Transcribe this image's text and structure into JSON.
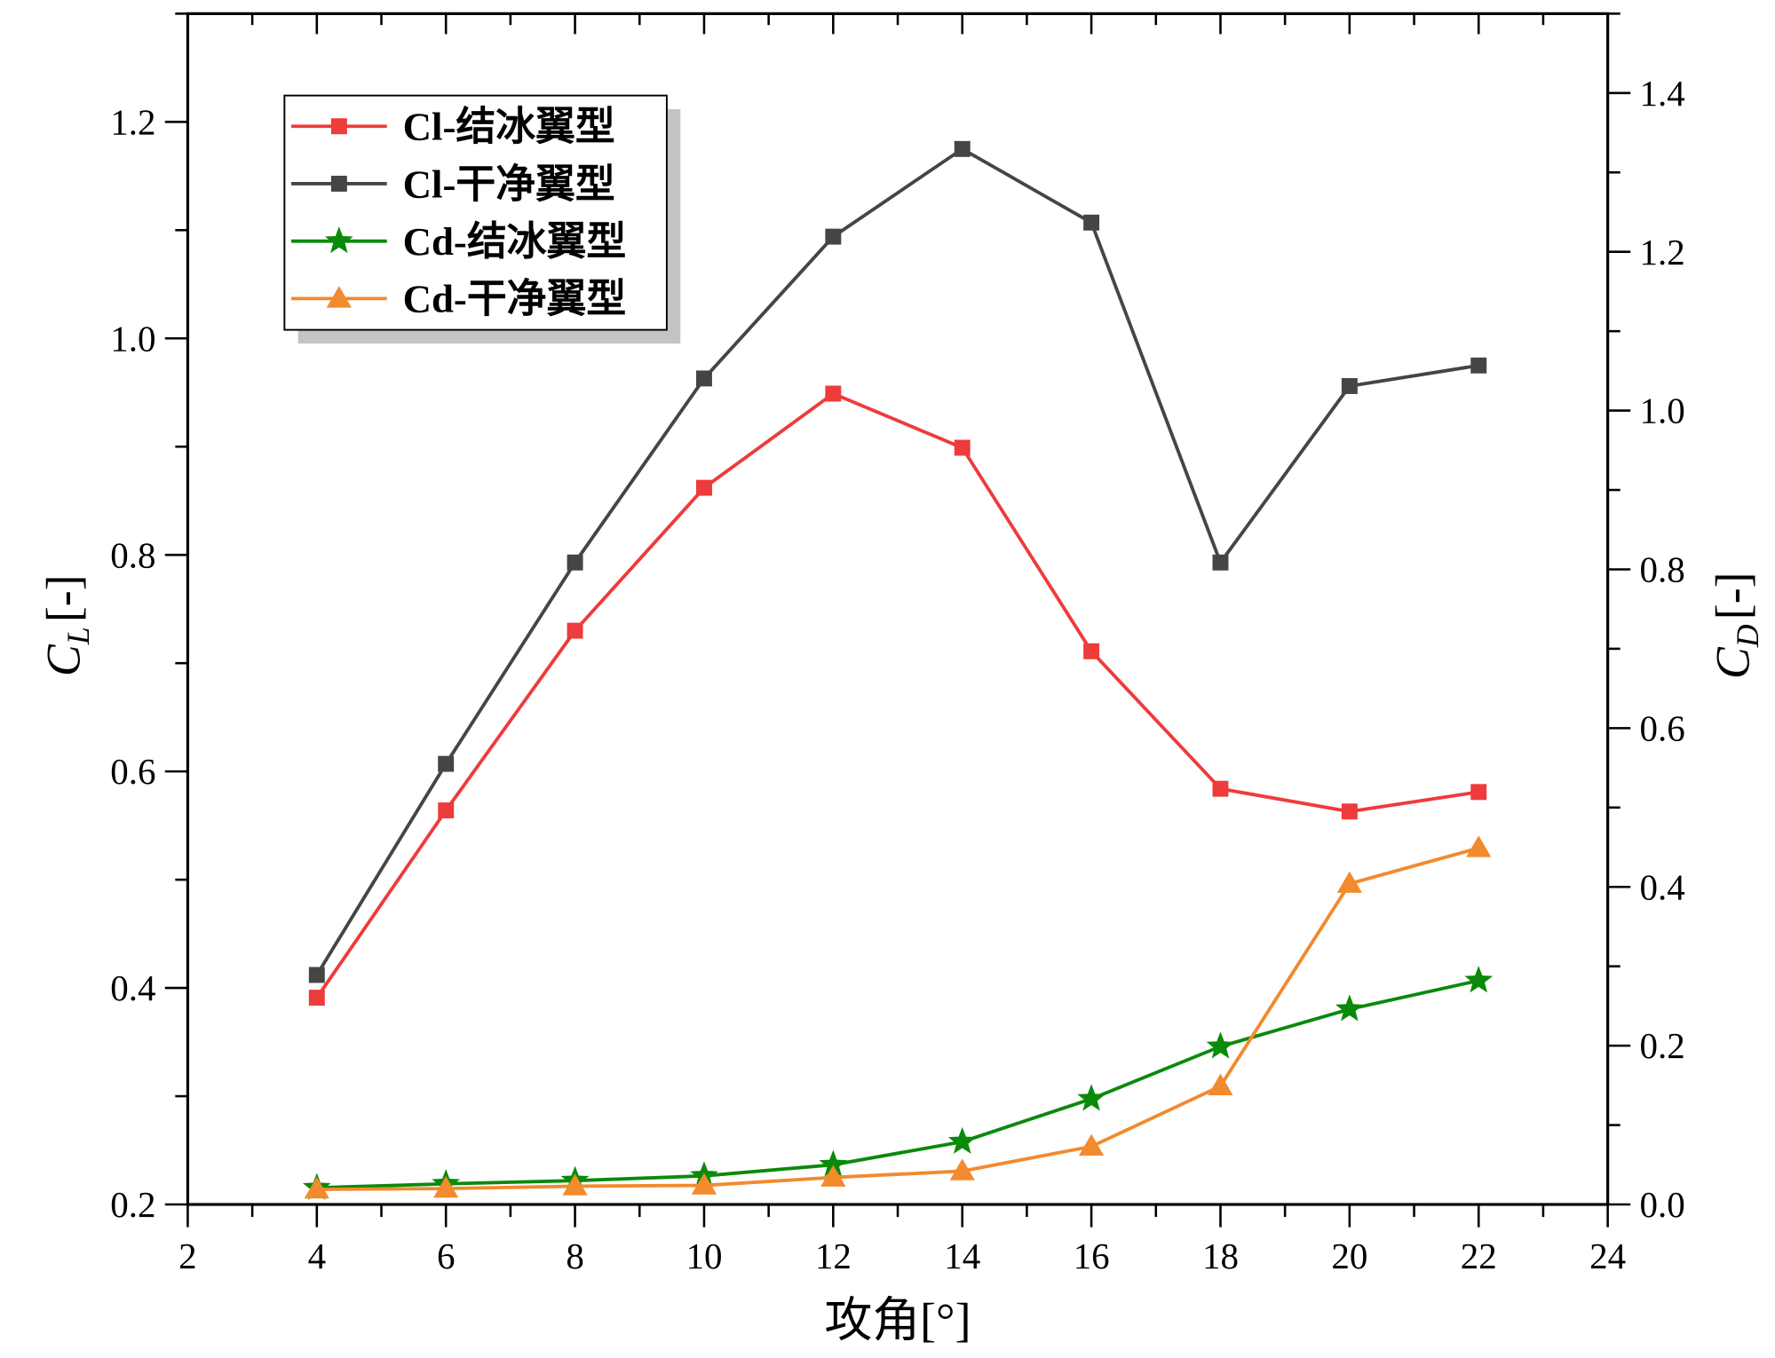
{
  "chart_data": {
    "type": "line",
    "xlabel": "攻角[°]",
    "ylabel_left": {
      "main": "C",
      "sub": "L",
      "unit": "[-]"
    },
    "ylabel_right": {
      "main": "C",
      "sub": "D",
      "unit": "[-]"
    },
    "xlim": [
      2,
      24
    ],
    "ylim_left": [
      0.2,
      1.3
    ],
    "ylim_right": [
      0.0,
      1.5
    ],
    "x_ticks": [
      "2",
      "4",
      "6",
      "8",
      "10",
      "12",
      "14",
      "16",
      "18",
      "20",
      "22",
      "24"
    ],
    "y_left_ticks": [
      "0.2",
      "0.4",
      "0.6",
      "0.8",
      "1.0",
      "1.2"
    ],
    "y_right_ticks": [
      "0.0",
      "0.2",
      "0.4",
      "0.6",
      "0.8",
      "1.0",
      "1.2",
      "1.4"
    ],
    "grid": false,
    "legend_position": "top-left",
    "x": [
      4,
      6,
      8,
      10,
      12,
      14,
      16,
      18,
      20,
      22
    ],
    "series": [
      {
        "name": "Cl-结冰翼型",
        "axis": "left",
        "color": "#ee3b3b",
        "marker": "square",
        "values": [
          0.391,
          0.564,
          0.73,
          0.862,
          0.949,
          0.899,
          0.711,
          0.584,
          0.563,
          0.581
        ]
      },
      {
        "name": "Cl-干净翼型",
        "axis": "left",
        "color": "#454545",
        "marker": "square",
        "values": [
          0.412,
          0.607,
          0.793,
          0.963,
          1.094,
          1.175,
          1.107,
          0.793,
          0.956,
          0.975
        ]
      },
      {
        "name": "Cd-结冰翼型",
        "axis": "right",
        "color": "#0a8a0a",
        "marker": "star",
        "values": [
          0.021,
          0.026,
          0.03,
          0.036,
          0.05,
          0.079,
          0.133,
          0.199,
          0.246,
          0.282
        ]
      },
      {
        "name": "Cd-干净翼型",
        "axis": "right",
        "color": "#f28a2e",
        "marker": "triangle",
        "values": [
          0.019,
          0.02,
          0.023,
          0.024,
          0.034,
          0.042,
          0.073,
          0.149,
          0.404,
          0.449
        ]
      }
    ]
  }
}
